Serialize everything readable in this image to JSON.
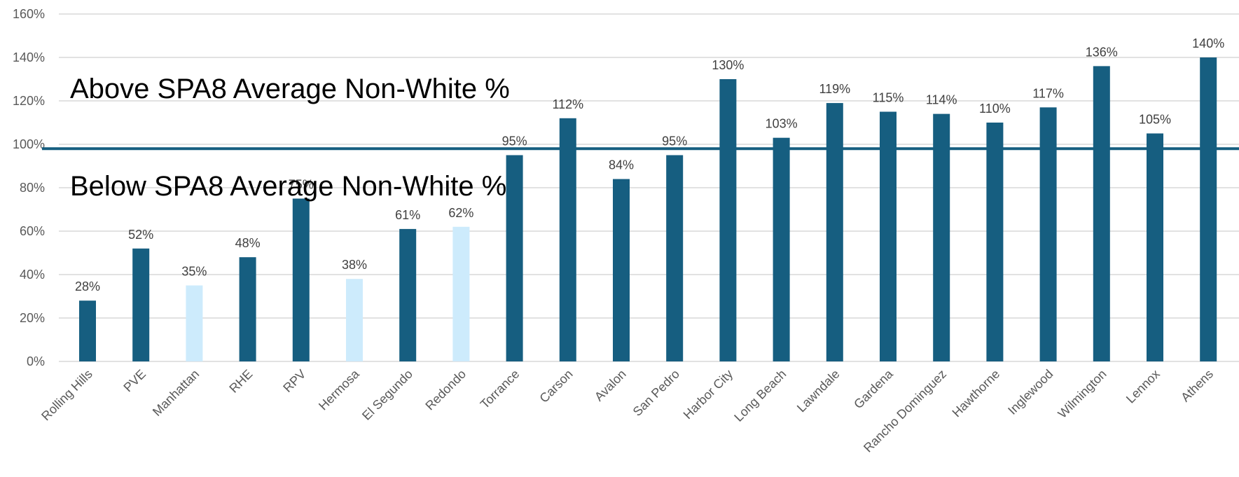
{
  "chart_data": {
    "type": "bar",
    "categories": [
      "Rolling Hills",
      "PVE",
      "Manhattan",
      "RHE",
      "RPV",
      "Hermosa",
      "El Segundo",
      "Redondo",
      "Torrance",
      "Carson",
      "Avalon",
      "San Pedro",
      "Harbor City",
      "Long Beach",
      "Lawndale",
      "Gardena",
      "Rancho Dominguez",
      "Hawthorne",
      "Inglewood",
      "Wilmington",
      "Lennox",
      "Athens"
    ],
    "values": [
      28,
      52,
      35,
      48,
      75,
      38,
      61,
      62,
      95,
      112,
      84,
      95,
      130,
      103,
      119,
      115,
      114,
      110,
      117,
      136,
      105,
      140
    ],
    "data_labels": [
      "28%",
      "52%",
      "35%",
      "48%",
      "75%",
      "38%",
      "61%",
      "62%",
      "95%",
      "112%",
      "84%",
      "95%",
      "130%",
      "103%",
      "119%",
      "115%",
      "114%",
      "110%",
      "117%",
      "136%",
      "105%",
      "140%"
    ],
    "highlighted": [
      false,
      false,
      true,
      false,
      false,
      true,
      false,
      true,
      false,
      false,
      false,
      false,
      false,
      false,
      false,
      false,
      false,
      false,
      false,
      false,
      false,
      false
    ],
    "y_ticks": [
      "0%",
      "20%",
      "40%",
      "60%",
      "80%",
      "100%",
      "120%",
      "140%",
      "160%"
    ],
    "ylim": [
      0,
      160
    ],
    "reference_line": 98,
    "grid": true,
    "legend": "none",
    "colors": {
      "bar": "#165E80",
      "bar_highlight": "#CDEBFC",
      "reference_line": "#165E80",
      "grid": "#D9D9D9"
    },
    "annotations": {
      "above": "Above SPA8 Average Non-White %",
      "below": "Below SPA8 Average Non-White %"
    }
  }
}
